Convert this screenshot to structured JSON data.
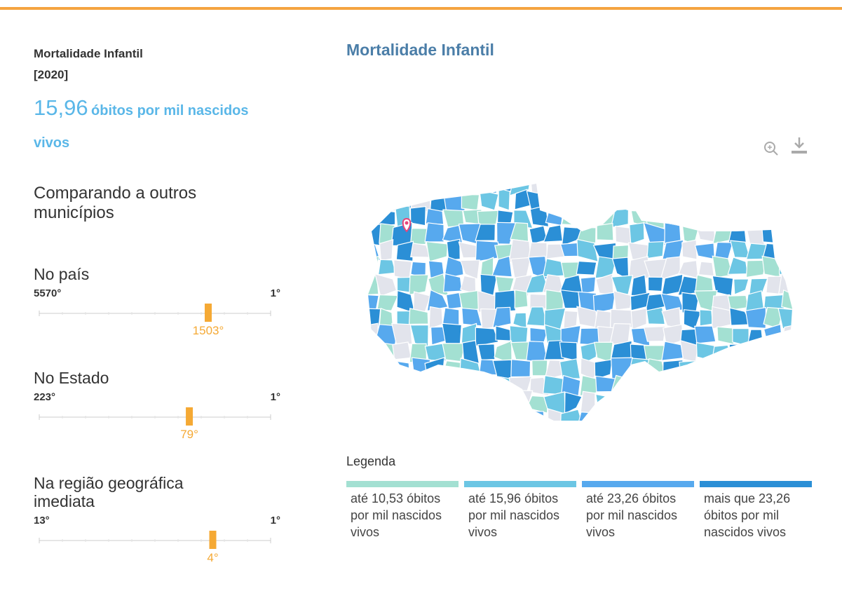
{
  "header": {
    "title": "Mortalidade Infantil",
    "year": "[2020]",
    "value": "15,96",
    "unit": "óbitos por mil nascidos vivos"
  },
  "comparison": {
    "title": "Comparando a outros municípios",
    "rankings": [
      {
        "label": "No país",
        "worst": {
          "value": 5570,
          "label": "5570°"
        },
        "best": {
          "value": 1,
          "label": "1°"
        },
        "rank": {
          "value": 1503,
          "label": "1503°"
        }
      },
      {
        "label": "No Estado",
        "worst": {
          "value": 223,
          "label": "223°"
        },
        "best": {
          "value": 1,
          "label": "1°"
        },
        "rank": {
          "value": 79,
          "label": "79°"
        }
      },
      {
        "label": "Na região geográfica imediata",
        "worst": {
          "value": 13,
          "label": "13°"
        },
        "best": {
          "value": 1,
          "label": "1°"
        },
        "rank": {
          "value": 4,
          "label": "4°"
        }
      }
    ]
  },
  "map": {
    "title": "Mortalidade Infantil",
    "legend": {
      "title": "Legenda",
      "items": [
        {
          "label": "até 10,53 óbitos por mil nascidos vivos",
          "color": "#a3e0d2"
        },
        {
          "label": "até 15,96 óbitos por mil nascidos vivos",
          "color": "#6cc6e4"
        },
        {
          "label": "até 23,26 óbitos por mil nascidos vivos",
          "color": "#57a9ee"
        },
        {
          "label": "mais que 23,26 óbitos por mil nascidos vivos",
          "color": "#2b8fd6"
        }
      ]
    }
  }
}
